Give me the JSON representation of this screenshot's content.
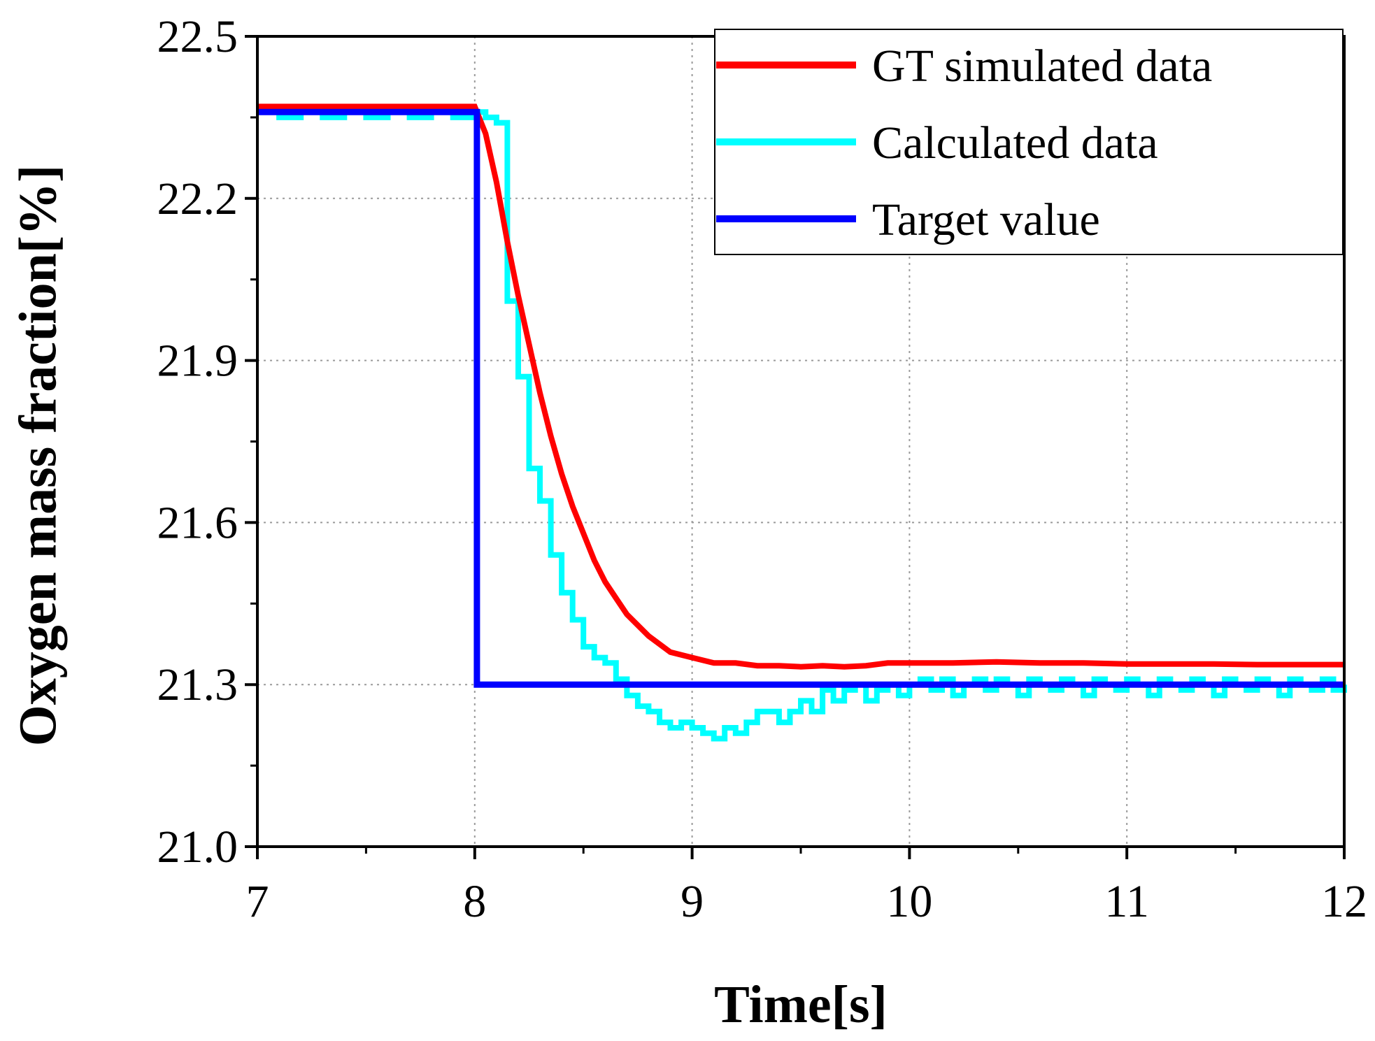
{
  "chart_data": {
    "type": "line",
    "title": "",
    "xlabel": "Time[s]",
    "ylabel": "Oxygen mass fraction[%]",
    "xlim": [
      7,
      12
    ],
    "ylim": [
      21.0,
      22.5
    ],
    "x_ticks": [
      7,
      8,
      9,
      10,
      11,
      12
    ],
    "x_tick_labels": [
      "7",
      "8",
      "9",
      "10",
      "11",
      "12"
    ],
    "y_ticks": [
      21.0,
      21.3,
      21.6,
      21.9,
      22.2,
      22.5
    ],
    "y_tick_labels": [
      "21.0",
      "21.3",
      "21.6",
      "21.9",
      "22.2",
      "22.5"
    ],
    "grid": true,
    "legend_position": "top-right",
    "series": [
      {
        "name": "GT simulated data",
        "color": "#ff0000",
        "style": "line",
        "x": [
          7.0,
          7.5,
          8.0,
          8.05,
          8.1,
          8.15,
          8.2,
          8.25,
          8.3,
          8.35,
          8.4,
          8.45,
          8.5,
          8.55,
          8.6,
          8.65,
          8.7,
          8.8,
          8.9,
          9.0,
          9.1,
          9.2,
          9.3,
          9.4,
          9.5,
          9.6,
          9.7,
          9.8,
          9.9,
          10.0,
          10.2,
          10.4,
          10.6,
          10.8,
          11.0,
          11.2,
          11.4,
          11.6,
          11.8,
          12.0
        ],
        "y": [
          22.37,
          22.37,
          22.37,
          22.32,
          22.23,
          22.12,
          22.02,
          21.93,
          21.84,
          21.76,
          21.69,
          21.63,
          21.58,
          21.53,
          21.49,
          21.46,
          21.43,
          21.39,
          21.36,
          21.35,
          21.34,
          21.34,
          21.335,
          21.335,
          21.333,
          21.335,
          21.333,
          21.335,
          21.34,
          21.34,
          21.34,
          21.342,
          21.34,
          21.34,
          21.338,
          21.338,
          21.338,
          21.337,
          21.337,
          21.337
        ]
      },
      {
        "name": "Calculated data",
        "color": "#00ffff",
        "style": "step",
        "x": [
          7.0,
          7.1,
          7.2,
          7.3,
          7.4,
          7.5,
          7.6,
          7.7,
          7.8,
          7.9,
          8.0,
          8.05,
          8.1,
          8.15,
          8.2,
          8.25,
          8.3,
          8.35,
          8.4,
          8.45,
          8.5,
          8.55,
          8.6,
          8.65,
          8.7,
          8.75,
          8.8,
          8.85,
          8.9,
          8.95,
          9.0,
          9.05,
          9.1,
          9.15,
          9.2,
          9.25,
          9.3,
          9.35,
          9.4,
          9.45,
          9.5,
          9.55,
          9.6,
          9.65,
          9.7,
          9.75,
          9.8,
          9.85,
          9.9,
          9.95,
          10.0,
          10.05,
          10.1,
          10.15,
          10.2,
          10.25,
          10.3,
          10.35,
          10.4,
          10.45,
          10.5,
          10.55,
          10.6,
          10.65,
          10.7,
          10.75,
          10.8,
          10.85,
          10.9,
          10.95,
          11.0,
          11.05,
          11.1,
          11.15,
          11.2,
          11.25,
          11.3,
          11.35,
          11.4,
          11.45,
          11.5,
          11.55,
          11.6,
          11.65,
          11.7,
          11.75,
          11.8,
          11.85,
          11.9,
          11.95,
          12.0
        ],
        "y": [
          22.36,
          22.35,
          22.36,
          22.35,
          22.36,
          22.35,
          22.36,
          22.35,
          22.36,
          22.35,
          22.36,
          22.35,
          22.34,
          22.01,
          21.87,
          21.7,
          21.64,
          21.54,
          21.47,
          21.42,
          21.37,
          21.35,
          21.34,
          21.31,
          21.28,
          21.26,
          21.25,
          21.23,
          21.22,
          21.23,
          21.22,
          21.21,
          21.2,
          21.22,
          21.21,
          21.23,
          21.25,
          21.25,
          21.23,
          21.25,
          21.27,
          21.25,
          21.29,
          21.27,
          21.29,
          21.3,
          21.27,
          21.29,
          21.3,
          21.28,
          21.3,
          21.31,
          21.29,
          21.31,
          21.28,
          21.3,
          21.31,
          21.29,
          21.31,
          21.3,
          21.28,
          21.31,
          21.3,
          21.29,
          21.31,
          21.3,
          21.28,
          21.31,
          21.3,
          21.29,
          21.31,
          21.3,
          21.28,
          21.31,
          21.3,
          21.29,
          21.31,
          21.3,
          21.28,
          21.31,
          21.3,
          21.29,
          21.31,
          21.3,
          21.28,
          21.31,
          21.3,
          21.29,
          21.31,
          21.29,
          21.3
        ]
      },
      {
        "name": "Target value",
        "color": "#0000ff",
        "style": "step",
        "x": [
          7.0,
          8.01,
          12.0
        ],
        "y": [
          22.36,
          21.3,
          21.3
        ]
      }
    ]
  }
}
